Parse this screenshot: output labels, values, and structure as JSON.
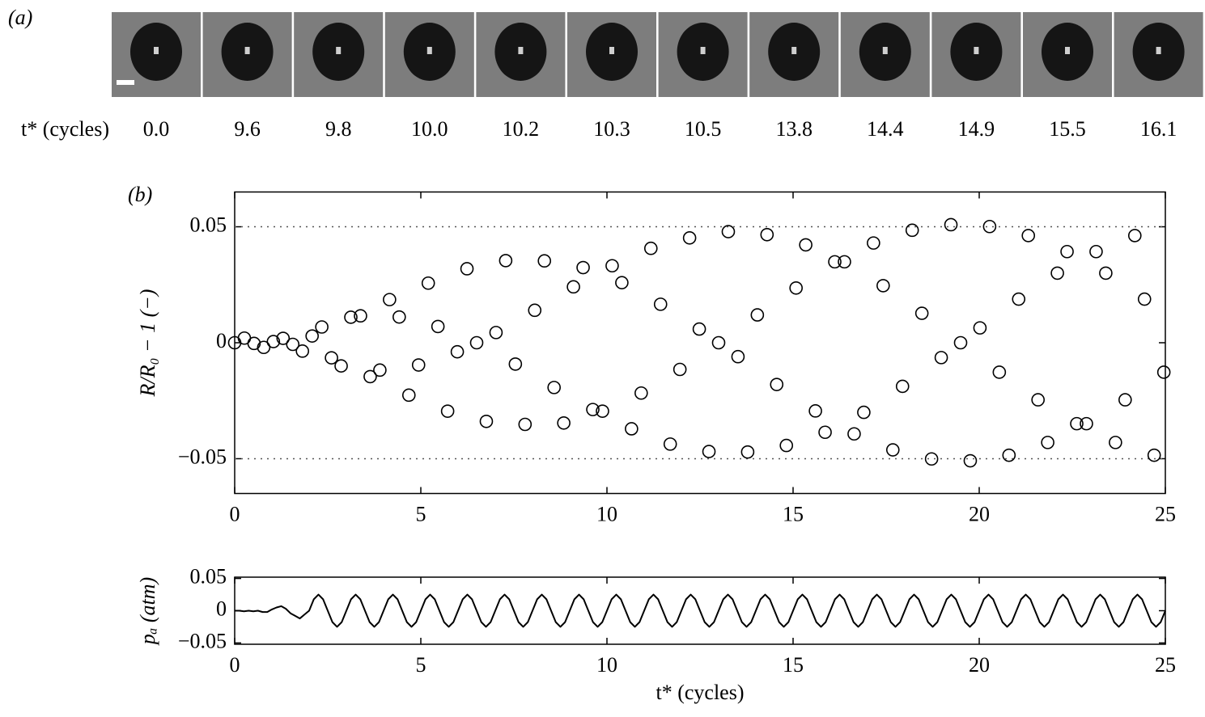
{
  "panel_a": {
    "label": "(a)",
    "row_label": "t* (cycles)",
    "times": [
      "0.0",
      "9.6",
      "9.8",
      "10.0",
      "10.2",
      "10.3",
      "10.5",
      "13.8",
      "14.4",
      "14.9",
      "15.5",
      "16.1"
    ]
  },
  "chart_data": [
    {
      "type": "scatter",
      "panel_label": "(b)",
      "ylabel": "R/R₀ − 1 (−)",
      "x": [
        0,
        0.26,
        0.52,
        0.78,
        1.04,
        1.3,
        1.56,
        1.82,
        2.08,
        2.34,
        2.6,
        2.86,
        3.12,
        3.38,
        3.64,
        3.9,
        4.16,
        4.42,
        4.68,
        4.94,
        5.2,
        5.46,
        5.72,
        5.98,
        6.24,
        6.5,
        6.76,
        7.02,
        7.28,
        7.54,
        7.8,
        8.06,
        8.32,
        8.58,
        8.84,
        9.1,
        9.36,
        9.62,
        9.88,
        10.14,
        10.4,
        10.66,
        10.92,
        11.18,
        11.44,
        11.7,
        11.96,
        12.22,
        12.48,
        12.74,
        13,
        13.26,
        13.52,
        13.78,
        14.04,
        14.3,
        14.56,
        14.82,
        15.08,
        15.34,
        15.6,
        15.86,
        16.12,
        16.38,
        16.64,
        16.9,
        17.16,
        17.42,
        17.68,
        17.94,
        18.2,
        18.46,
        18.72,
        18.98,
        19.24,
        19.5,
        19.76,
        20.02,
        20.28,
        20.54,
        20.8,
        21.06,
        21.32,
        21.58,
        21.84,
        22.1,
        22.36,
        22.62,
        22.88,
        23.14,
        23.4,
        23.66,
        23.92,
        24.18,
        24.44,
        24.7,
        24.96
      ],
      "values": [
        0,
        0.002,
        -0.0003,
        -0.002,
        0.0005,
        0.0019,
        -0.0007,
        -0.0036,
        0.0029,
        0.0068,
        -0.0065,
        -0.01,
        0.011,
        0.0116,
        -0.0146,
        -0.0118,
        0.0186,
        0.0111,
        -0.0226,
        -0.0096,
        0.0257,
        0.007,
        -0.0295,
        -0.0039,
        0.0319,
        0,
        -0.0339,
        0.0044,
        0.0354,
        -0.0092,
        -0.0352,
        0.014,
        0.0353,
        -0.0193,
        -0.0346,
        0.0241,
        0.0324,
        -0.0288,
        -0.0295,
        0.0332,
        0.0259,
        -0.0371,
        -0.0217,
        0.0407,
        0.0166,
        -0.0437,
        -0.0115,
        0.0452,
        0.0059,
        -0.0469,
        0,
        0.0479,
        -0.006,
        -0.0471,
        0.012,
        0.0466,
        -0.018,
        -0.0443,
        0.0236,
        0.0422,
        -0.0294,
        -0.0386,
        0.0349,
        0.0349,
        -0.0393,
        -0.03,
        0.043,
        0.0246,
        -0.0462,
        -0.0188,
        0.0485,
        0.0127,
        -0.0501,
        -0.0064,
        0.0509,
        0,
        -0.0509,
        0.0064,
        0.0501,
        -0.0127,
        -0.0485,
        0.0188,
        0.0462,
        -0.0246,
        -0.043,
        0.03,
        0.0393,
        -0.0349,
        -0.0349,
        0.0393,
        0.03,
        -0.043,
        -0.0246,
        0.0462,
        0.0188,
        -0.0485,
        -0.0127
      ],
      "color": "#000000",
      "xlim": [
        0,
        25
      ],
      "ylim": [
        -0.065,
        0.065
      ],
      "xticks": [
        0,
        5,
        10,
        15,
        20,
        25
      ],
      "yticks": [
        {
          "value": -0.05,
          "label": "−0.05"
        },
        0,
        0.05
      ],
      "reference_lines": [
        0.05,
        -0.05
      ]
    },
    {
      "type": "line",
      "ylabel": "pₐ (atm)",
      "xlabel": "t* (cycles)",
      "x": [
        0,
        0.125,
        0.25,
        0.375,
        0.5,
        0.625,
        0.75,
        0.875,
        1,
        1.125,
        1.25,
        1.375,
        1.5,
        1.625,
        1.75,
        1.875,
        2,
        2.125,
        2.25,
        2.375,
        2.5,
        2.625,
        2.75,
        2.875,
        3,
        3.125,
        3.25,
        3.375,
        3.5,
        3.625,
        3.75,
        3.875,
        4,
        4.125,
        4.25,
        4.375,
        4.5,
        4.625,
        4.75,
        4.875,
        5,
        5.125,
        5.25,
        5.375,
        5.5,
        5.625,
        5.75,
        5.875,
        6,
        6.125,
        6.25,
        6.375,
        6.5,
        6.625,
        6.75,
        6.875,
        7,
        7.125,
        7.25,
        7.375,
        7.5,
        7.625,
        7.75,
        7.875,
        8,
        8.125,
        8.25,
        8.375,
        8.5,
        8.625,
        8.75,
        8.875,
        9,
        9.125,
        9.25,
        9.375,
        9.5,
        9.625,
        9.75,
        9.875,
        10,
        10.125,
        10.25,
        10.375,
        10.5,
        10.625,
        10.75,
        10.875,
        11,
        11.125,
        11.25,
        11.375,
        11.5,
        11.625,
        11.75,
        11.875,
        12,
        12.125,
        12.25,
        12.375,
        12.5,
        12.625,
        12.75,
        12.875,
        13,
        13.125,
        13.25,
        13.375,
        13.5,
        13.625,
        13.75,
        13.875,
        14,
        14.125,
        14.25,
        14.375,
        14.5,
        14.625,
        14.75,
        14.875,
        15,
        15.125,
        15.25,
        15.375,
        15.5,
        15.625,
        15.75,
        15.875,
        16,
        16.125,
        16.25,
        16.375,
        16.5,
        16.625,
        16.75,
        16.875,
        17,
        17.125,
        17.25,
        17.375,
        17.5,
        17.625,
        17.75,
        17.875,
        18,
        18.125,
        18.25,
        18.375,
        18.5,
        18.625,
        18.75,
        18.875,
        19,
        19.125,
        19.25,
        19.375,
        19.5,
        19.625,
        19.75,
        19.875,
        20,
        20.125,
        20.25,
        20.375,
        20.5,
        20.625,
        20.75,
        20.875,
        21,
        21.125,
        21.25,
        21.375,
        21.5,
        21.625,
        21.75,
        21.875,
        22,
        22.125,
        22.25,
        22.375,
        22.5,
        22.625,
        22.75,
        22.875,
        23,
        23.125,
        23.25,
        23.375,
        23.5,
        23.625,
        23.75,
        23.875,
        24,
        24.125,
        24.25,
        24.375,
        24.5,
        24.625,
        24.75,
        24.875,
        25
      ],
      "values": [
        0,
        0,
        -0.001,
        0,
        -0.001,
        0,
        -0.002,
        -0.002,
        0.002,
        0.005,
        0.007,
        0.003,
        -0.004,
        -0.008,
        -0.012,
        -0.006,
        0,
        0.0177,
        0.025,
        0.0177,
        0,
        -0.0177,
        -0.025,
        -0.0177,
        0,
        0.0177,
        0.025,
        0.0177,
        0,
        -0.0177,
        -0.025,
        -0.0177,
        0,
        0.0177,
        0.025,
        0.0177,
        0,
        -0.0177,
        -0.025,
        -0.0177,
        0,
        0.0177,
        0.025,
        0.0177,
        0,
        -0.0177,
        -0.025,
        -0.0177,
        0,
        0.0177,
        0.025,
        0.0177,
        0,
        -0.0177,
        -0.025,
        -0.0177,
        0,
        0.0177,
        0.025,
        0.0177,
        0,
        -0.0177,
        -0.025,
        -0.0177,
        0,
        0.0177,
        0.025,
        0.0177,
        0,
        -0.0177,
        -0.025,
        -0.0177,
        0,
        0.0177,
        0.025,
        0.0177,
        0,
        -0.0177,
        -0.025,
        -0.0177,
        0,
        0.0177,
        0.025,
        0.0177,
        0,
        -0.0177,
        -0.025,
        -0.0177,
        0,
        0.0177,
        0.025,
        0.0177,
        0,
        -0.0177,
        -0.025,
        -0.0177,
        0,
        0.0177,
        0.025,
        0.0177,
        0,
        -0.0177,
        -0.025,
        -0.0177,
        0,
        0.0177,
        0.025,
        0.0177,
        0,
        -0.0177,
        -0.025,
        -0.0177,
        0,
        0.0177,
        0.025,
        0.0177,
        0,
        -0.0177,
        -0.025,
        -0.0177,
        0,
        0.0177,
        0.025,
        0.0177,
        0,
        -0.0177,
        -0.025,
        -0.0177,
        0,
        0.0177,
        0.025,
        0.0177,
        0,
        -0.0177,
        -0.025,
        -0.0177,
        0,
        0.0177,
        0.025,
        0.0177,
        0,
        -0.0177,
        -0.025,
        -0.0177,
        0,
        0.0177,
        0.025,
        0.0177,
        0,
        -0.0177,
        -0.025,
        -0.0177,
        0,
        0.0177,
        0.025,
        0.0177,
        0,
        -0.0177,
        -0.025,
        -0.0177,
        0,
        0.0177,
        0.025,
        0.0177,
        0,
        -0.0177,
        -0.025,
        -0.0177,
        0,
        0.0177,
        0.025,
        0.0177,
        0,
        -0.0177,
        -0.025,
        -0.0177,
        0,
        0.0177,
        0.025,
        0.0177,
        0,
        -0.0177,
        -0.025,
        -0.0177,
        0,
        0.0177,
        0.025,
        0.0177,
        0,
        -0.0177,
        -0.025,
        -0.0177,
        0,
        0.0177,
        0.025,
        0.0177,
        0,
        -0.0177,
        -0.025,
        -0.0177,
        0
      ],
      "color": "#000000",
      "xlim": [
        0,
        25
      ],
      "ylim": [
        -0.052,
        0.052
      ],
      "xticks": [
        0,
        5,
        10,
        15,
        20,
        25
      ],
      "yticks": [
        {
          "value": -0.05,
          "label": "−0.05"
        },
        0,
        0.05
      ]
    }
  ]
}
